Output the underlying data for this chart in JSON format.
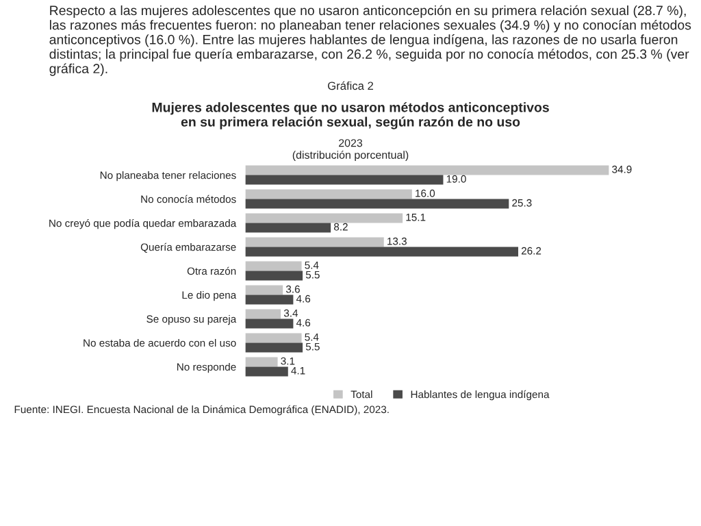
{
  "chart_data": {
    "type": "bar",
    "orientation": "horizontal",
    "title": "Mujeres adolescentes que no usaron métodos anticonceptivos\nen su primera relación sexual, según razón de no uso",
    "subtitle": "2023\n(distribución porcentual)",
    "categories": [
      "No planeaba tener relaciones",
      "No conocía métodos",
      "No creyó que podía quedar embarazada",
      "Quería embarazarse",
      "Otra razón",
      "Le dio pena",
      "Se opuso su pareja",
      "No estaba de acuerdo con el uso",
      "No responde"
    ],
    "series": [
      {
        "name": "Total",
        "color": "#c4c4c4",
        "values": [
          34.9,
          16.0,
          15.1,
          13.3,
          5.4,
          3.6,
          3.4,
          5.4,
          3.1
        ],
        "value_labels": [
          "34.9",
          "16.0",
          "15.1",
          "13.3",
          "5.4",
          "3.6",
          "3.4",
          "5.4",
          "3.1"
        ]
      },
      {
        "name": "Hablantes de lengua indígena",
        "color": "#4a4a4a",
        "values": [
          19.0,
          25.3,
          8.2,
          26.2,
          5.5,
          4.6,
          4.6,
          5.5,
          4.1
        ],
        "value_labels": [
          "19.0",
          "25.3",
          "8.2",
          "26.2",
          "5.5",
          "4.6",
          "4.6",
          "5.5",
          "4.1"
        ]
      }
    ],
    "legend": "bottom",
    "tick_labels": "y",
    "grid": false,
    "annotations": [
      "Respecto a las mujeres adolescentes que no usaron anticoncepción en su primera relación sexual (28.7 %), las razones más frecuentes fueron: no planeaban tener relaciones sexuales (34.9 %) y no conocían métodos anticonceptivos (16.0 %). Entre las mujeres hablantes de lengua indígena, las razones de no usarla fueron distintas; la principal fue quería embarazarse, con 26.2 %, seguida por no conocía métodos, con 25.3 % (ver gráfica 2).",
      "Gráfica 2",
      "Fuente: INEGI. Encuesta Nacional de la Dinámica Demográfica (ENADID), 2023."
    ]
  }
}
